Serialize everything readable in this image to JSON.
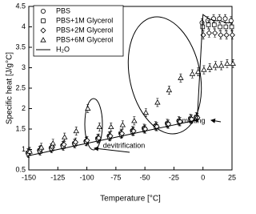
{
  "chart_data": {
    "type": "scatter",
    "x_label": "Temperature [°C]",
    "y_label": "Specific heat [J/g°C]",
    "x": [
      -150,
      -140,
      -130,
      -120,
      -110,
      -100,
      -90,
      -80,
      -70,
      -60,
      -50,
      -40,
      -30,
      -20,
      -10,
      -5,
      0,
      5,
      10,
      15,
      20,
      25
    ],
    "series": [
      {
        "name": "PBS",
        "marker": "circle",
        "color": "#000",
        "error": 0.1,
        "values": [
          0.92,
          0.98,
          1.04,
          1.1,
          1.15,
          1.2,
          1.27,
          1.33,
          1.4,
          1.46,
          1.52,
          1.58,
          1.64,
          1.7,
          1.76,
          1.8,
          4.1,
          4.15,
          4.2,
          4.2,
          4.2,
          4.15
        ]
      },
      {
        "name": "PBS+1M Glycerol",
        "marker": "square",
        "color": "#000",
        "error": 0.1,
        "values": [
          0.9,
          0.96,
          1.02,
          1.08,
          1.14,
          1.19,
          1.25,
          1.31,
          1.37,
          1.44,
          1.5,
          1.56,
          1.62,
          1.68,
          1.74,
          1.78,
          4.0,
          4.05,
          4.05,
          4.0,
          4.0,
          4.0
        ]
      },
      {
        "name": "PBS+2M Glycerol",
        "marker": "diamond",
        "color": "#000",
        "error": 0.1,
        "values": [
          0.95,
          1.0,
          1.06,
          1.12,
          1.18,
          1.22,
          1.28,
          1.33,
          1.39,
          1.45,
          1.5,
          1.56,
          1.62,
          1.68,
          1.74,
          1.78,
          3.8,
          3.85,
          3.85,
          3.8,
          3.8,
          3.8
        ]
      },
      {
        "name": "PBS+6M Glycerol",
        "marker": "triangle",
        "color": "#000",
        "error": 0.1,
        "values": [
          0.95,
          1.05,
          1.15,
          1.3,
          1.45,
          2.0,
          1.55,
          1.55,
          1.6,
          1.7,
          1.9,
          2.15,
          2.45,
          2.75,
          2.85,
          2.9,
          2.95,
          3.0,
          3.05,
          3.05,
          3.1,
          3.1
        ]
      },
      {
        "name": "H₂O",
        "marker": "line",
        "color": "#000",
        "values": [
          0.85,
          0.91,
          0.97,
          1.03,
          1.09,
          1.15,
          1.21,
          1.27,
          1.33,
          1.39,
          1.45,
          1.51,
          1.57,
          1.63,
          1.69,
          1.72,
          4.3,
          4.2,
          4.15,
          4.15,
          4.1,
          4.1
        ]
      }
    ],
    "annotations": [
      "melting",
      "devitrification"
    ],
    "xlim": [
      -150,
      25
    ],
    "xticks": [
      -150,
      -125,
      -100,
      -75,
      -50,
      -25,
      0,
      25
    ],
    "ylim": [
      0.5,
      4.5
    ],
    "yticks": [
      0.5,
      1,
      1.5,
      2,
      2.5,
      3,
      3.5,
      4,
      4.5
    ]
  }
}
